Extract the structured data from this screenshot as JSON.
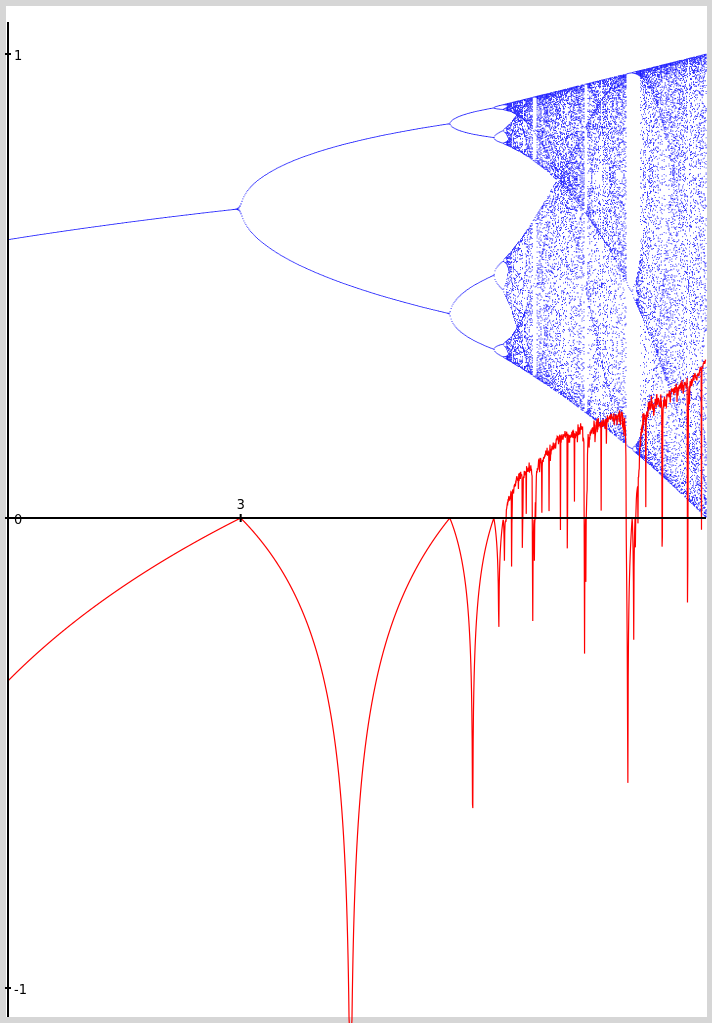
{
  "chart_data": {
    "type": "scatter",
    "title": "",
    "xlabel": "",
    "ylabel": "",
    "xlim": [
      2.5,
      4.0
    ],
    "ylim": [
      -1,
      1
    ],
    "x_ticks": [
      {
        "value": 3,
        "label": "3"
      }
    ],
    "y_ticks": [
      {
        "value": 1,
        "label": "1"
      },
      {
        "value": 0,
        "label": "0"
      },
      {
        "value": -1,
        "label": "-1"
      }
    ],
    "grid": false,
    "series": [
      {
        "kind": "scatter",
        "description_key": "bifurcation",
        "color": "#0000ff",
        "r_step": 0.0021,
        "transient_iterations": 400,
        "plotted_iterations": 120
      },
      {
        "kind": "line",
        "description_key": "lyapunov",
        "color": "#ff0000",
        "r_step": 0.0007,
        "iterations": 500,
        "display_scale": 0.5,
        "points": [
          [
            2.5,
            -0.6931
          ],
          [
            2.6,
            -0.4463
          ],
          [
            2.7,
            -0.2877
          ],
          [
            2.8,
            -0.1335
          ],
          [
            2.9,
            -0.0645
          ],
          [
            3.0,
            0.0
          ],
          [
            3.1,
            -0.1054
          ],
          [
            3.2,
            -0.9163
          ],
          [
            3.3,
            -0.5978
          ],
          [
            3.4,
            -0.223
          ],
          [
            3.449,
            0.0
          ],
          [
            3.5,
            -0.8725
          ],
          [
            3.544,
            0.0
          ],
          [
            3.6,
            0.1826
          ],
          [
            3.7,
            0.354
          ],
          [
            3.74,
            -0.15
          ],
          [
            3.8,
            0.4318
          ],
          [
            3.83,
            -0.37
          ],
          [
            3.9,
            0.4945
          ],
          [
            4.0,
            0.6931
          ]
        ]
      }
    ],
    "colors": {
      "axis": "#000000",
      "frame": "#d6d6d6",
      "background": "#ffffff"
    }
  }
}
